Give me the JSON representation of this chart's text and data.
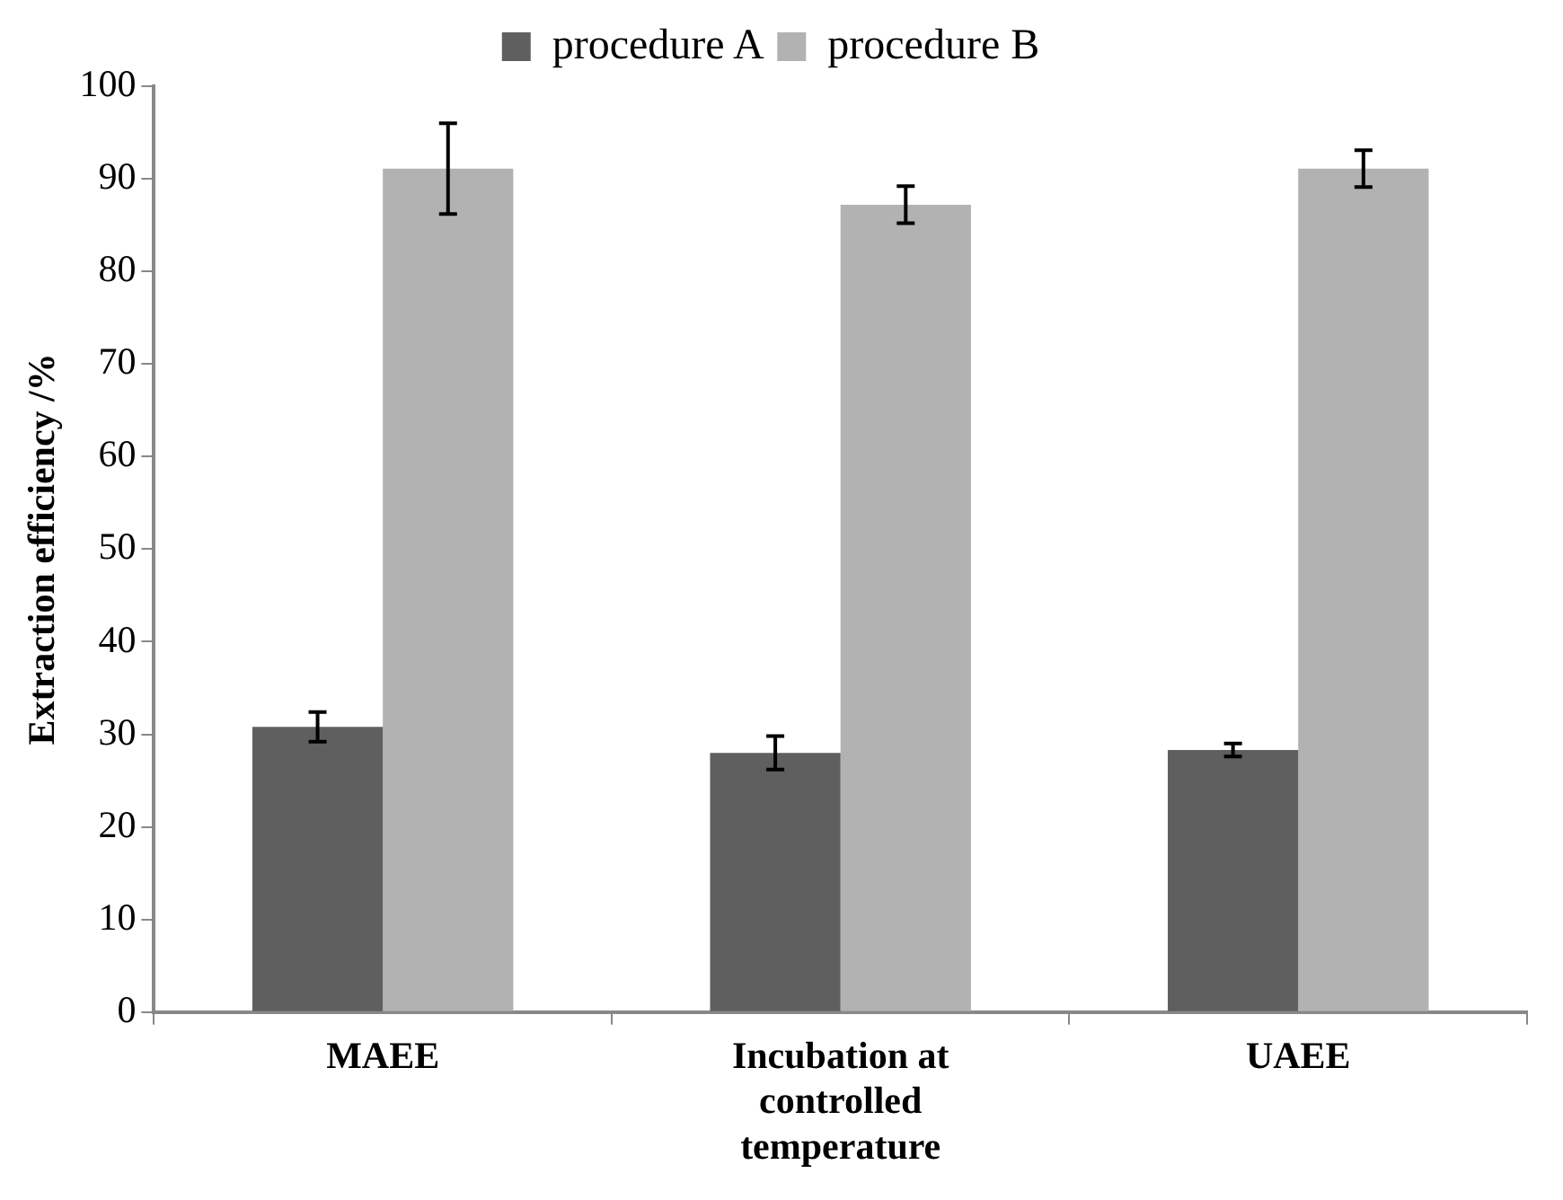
{
  "chart_data": {
    "type": "bar",
    "ylabel": "Extraction efficiency /%",
    "categories": [
      "MAEE",
      "Incubation at controlled temperature",
      "UAEE"
    ],
    "series": [
      {
        "name": "procedure A",
        "color": "#5f5f5f",
        "values": [
          30.8,
          28,
          28.3
        ],
        "errors": [
          1.6,
          1.8,
          0.7
        ]
      },
      {
        "name": "procedure B",
        "color": "#b2b2b2",
        "values": [
          91.1,
          87.2,
          91.1
        ],
        "errors": [
          4.9,
          2,
          2
        ]
      }
    ],
    "ylim": [
      0,
      100
    ],
    "yticks": [
      0,
      10,
      20,
      30,
      40,
      50,
      60,
      70,
      80,
      90,
      100
    ],
    "grid": false,
    "legend": "top"
  }
}
